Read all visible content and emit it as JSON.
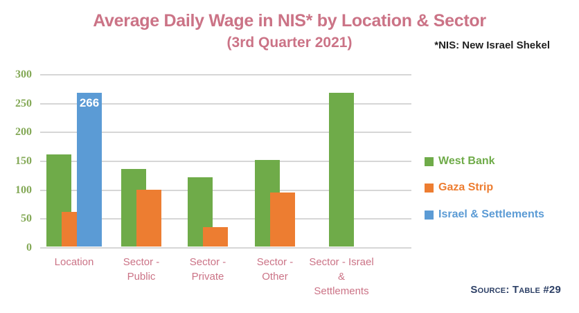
{
  "header": {
    "title": "Average Daily Wage in NIS* by Location & Sector",
    "subtitle": "(3rd Quarter 2021)",
    "note": "*NIS: New Israel Shekel"
  },
  "footer": {
    "source": "Source: Table #29"
  },
  "legend": {
    "items": [
      {
        "label": "West Bank",
        "color": "#6fab49"
      },
      {
        "label": "Gaza Strip",
        "color": "#ed7d31"
      },
      {
        "label": "Israel & Settlements",
        "color": "#5b9bd5"
      }
    ]
  },
  "colors": {
    "title_pink": "#cb7386",
    "category_pink": "#cb7386",
    "axis_green": "#84a957",
    "gridline_gray": "#d6d6d6",
    "note_black": "#1f1f1f",
    "source_navy": "#2d4066",
    "bar_label_white": "#ffffff"
  },
  "chart_data": {
    "type": "bar",
    "title": "Average Daily Wage in NIS* by Location & Sector",
    "subtitle": "(3rd Quarter 2021)",
    "xlabel": "",
    "ylabel": "",
    "ylim": [
      0,
      300
    ],
    "y_ticks": [
      0,
      50,
      100,
      150,
      200,
      250,
      300
    ],
    "grid": true,
    "legend_position": "right",
    "categories": [
      "Location",
      "Sector -\nPublic",
      "Sector -\nPrivate",
      "Sector -\nOther",
      "Sector - Israel\n&\nSettlements"
    ],
    "series": [
      {
        "name": "West Bank",
        "color": "#6fab49",
        "values": [
          160,
          135,
          120,
          150,
          266
        ]
      },
      {
        "name": "Gaza Strip",
        "color": "#ed7d31",
        "values": [
          60,
          98,
          34,
          94,
          null
        ]
      },
      {
        "name": "Israel & Settlements",
        "color": "#5b9bd5",
        "values": [
          266,
          null,
          null,
          null,
          null
        ]
      }
    ],
    "data_labels": [
      {
        "series": 2,
        "category": 0,
        "text": "266"
      }
    ]
  }
}
